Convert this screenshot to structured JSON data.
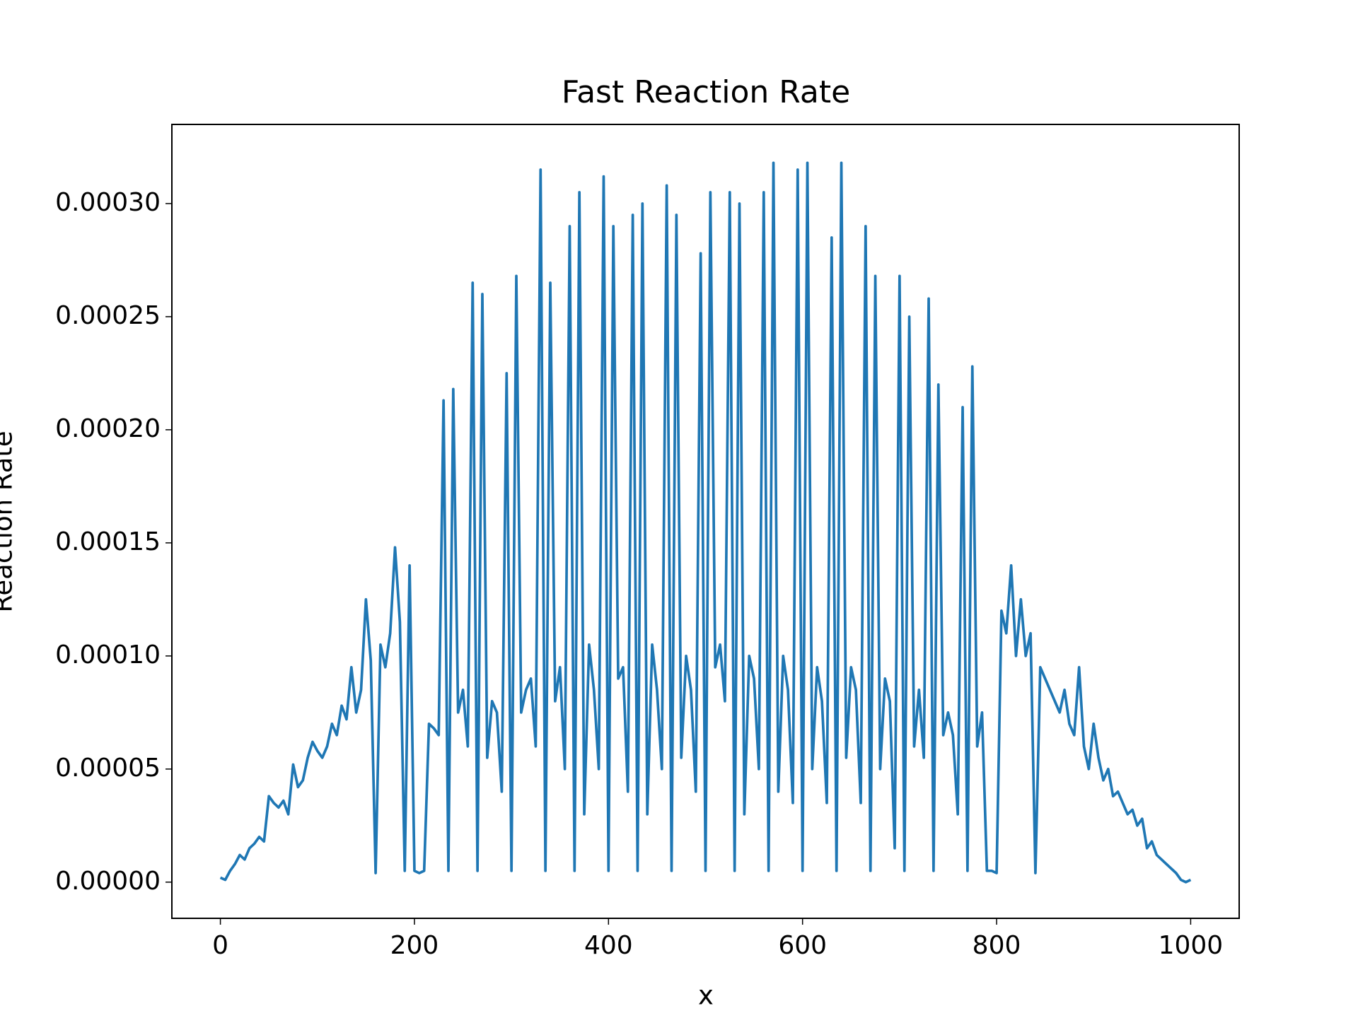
{
  "chart_data": {
    "type": "line",
    "title": "Fast Reaction Rate",
    "xlabel": "x",
    "ylabel": "Reaction Rate",
    "xlim": [
      -50,
      1050
    ],
    "ylim": [
      -1.6e-05,
      0.000335
    ],
    "xticks": [
      0,
      200,
      400,
      600,
      800,
      1000
    ],
    "yticks": [
      {
        "value": 0,
        "label": "0.00000"
      },
      {
        "value": 5e-05,
        "label": "0.00005"
      },
      {
        "value": 0.0001,
        "label": "0.00010"
      },
      {
        "value": 0.00015,
        "label": "0.00015"
      },
      {
        "value": 0.0002,
        "label": "0.00020"
      },
      {
        "value": 0.00025,
        "label": "0.00025"
      },
      {
        "value": 0.0003,
        "label": "0.00030"
      }
    ],
    "grid": false,
    "x": [
      0,
      5,
      10,
      15,
      20,
      25,
      30,
      35,
      40,
      45,
      50,
      55,
      60,
      65,
      70,
      75,
      80,
      85,
      90,
      95,
      100,
      105,
      110,
      115,
      120,
      125,
      130,
      135,
      140,
      145,
      150,
      155,
      160,
      165,
      170,
      175,
      180,
      185,
      190,
      195,
      200,
      205,
      210,
      215,
      220,
      225,
      230,
      235,
      240,
      245,
      250,
      255,
      260,
      265,
      270,
      275,
      280,
      285,
      290,
      295,
      300,
      305,
      310,
      315,
      320,
      325,
      330,
      335,
      340,
      345,
      350,
      355,
      360,
      365,
      370,
      375,
      380,
      385,
      390,
      395,
      400,
      405,
      410,
      415,
      420,
      425,
      430,
      435,
      440,
      445,
      450,
      455,
      460,
      465,
      470,
      475,
      480,
      485,
      490,
      495,
      500,
      505,
      510,
      515,
      520,
      525,
      530,
      535,
      540,
      545,
      550,
      555,
      560,
      565,
      570,
      575,
      580,
      585,
      590,
      595,
      600,
      605,
      610,
      615,
      620,
      625,
      630,
      635,
      640,
      645,
      650,
      655,
      660,
      665,
      670,
      675,
      680,
      685,
      690,
      695,
      700,
      705,
      710,
      715,
      720,
      725,
      730,
      735,
      740,
      745,
      750,
      755,
      760,
      765,
      770,
      775,
      780,
      785,
      790,
      795,
      800,
      805,
      810,
      815,
      820,
      825,
      830,
      835,
      840,
      845,
      850,
      855,
      860,
      865,
      870,
      875,
      880,
      885,
      890,
      895,
      900,
      905,
      910,
      915,
      920,
      925,
      930,
      935,
      940,
      945,
      950,
      955,
      960,
      965,
      970,
      975,
      980,
      985,
      990,
      995,
      1000
    ],
    "series": [
      {
        "color": "#1f77b4",
        "values": [
          2e-06,
          1e-06,
          5e-06,
          8e-06,
          1.2e-05,
          1e-05,
          1.5e-05,
          1.7e-05,
          2e-05,
          1.8e-05,
          3.8e-05,
          3.5e-05,
          3.3e-05,
          3.6e-05,
          3e-05,
          5.2e-05,
          4.2e-05,
          4.5e-05,
          5.5e-05,
          6.2e-05,
          5.8e-05,
          5.5e-05,
          6e-05,
          7e-05,
          6.5e-05,
          7.8e-05,
          7.2e-05,
          9.5e-05,
          7.5e-05,
          8.5e-05,
          0.000125,
          9.8e-05,
          4e-06,
          0.000105,
          9.5e-05,
          0.00011,
          0.000148,
          0.000115,
          5e-06,
          0.00014,
          5e-06,
          4e-06,
          5e-06,
          7e-05,
          6.8e-05,
          6.5e-05,
          0.000213,
          5e-06,
          0.000218,
          7.5e-05,
          8.5e-05,
          6e-05,
          0.000265,
          5e-06,
          0.00026,
          5.5e-05,
          8e-05,
          7.5e-05,
          4e-05,
          0.000225,
          5e-06,
          0.000268,
          7.5e-05,
          8.5e-05,
          9e-05,
          6e-05,
          0.000315,
          5e-06,
          0.000265,
          8e-05,
          9.5e-05,
          5e-05,
          0.00029,
          5e-06,
          0.000305,
          3e-05,
          0.000105,
          8.5e-05,
          5e-05,
          0.000312,
          5e-06,
          0.00029,
          9e-05,
          9.5e-05,
          4e-05,
          0.000295,
          5e-06,
          0.0003,
          3e-05,
          0.000105,
          8.5e-05,
          5e-05,
          0.000308,
          5e-06,
          0.000295,
          5.5e-05,
          0.0001,
          8.5e-05,
          4e-05,
          0.000278,
          5e-06,
          0.000305,
          9.5e-05,
          0.000105,
          8e-05,
          0.000305,
          5e-06,
          0.0003,
          3e-05,
          0.0001,
          9e-05,
          5e-05,
          0.000305,
          5e-06,
          0.000318,
          4e-05,
          0.0001,
          8.5e-05,
          3.5e-05,
          0.000315,
          5e-06,
          0.000318,
          5e-05,
          9.5e-05,
          8e-05,
          3.5e-05,
          0.000285,
          5e-06,
          0.000318,
          5.5e-05,
          9.5e-05,
          8.5e-05,
          3.5e-05,
          0.00029,
          5e-06,
          0.000268,
          5e-05,
          9e-05,
          8e-05,
          1.5e-05,
          0.000268,
          5e-06,
          0.00025,
          6e-05,
          8.5e-05,
          5.5e-05,
          0.000258,
          5e-06,
          0.00022,
          6.5e-05,
          7.5e-05,
          6.5e-05,
          3e-05,
          0.00021,
          5e-06,
          0.000228,
          6e-05,
          7.5e-05,
          5e-06,
          5e-06,
          4e-06,
          0.00012,
          0.00011,
          0.00014,
          0.0001,
          0.000125,
          0.0001,
          0.00011,
          4e-06,
          9.5e-05,
          9e-05,
          8.5e-05,
          8e-05,
          7.5e-05,
          8.5e-05,
          7e-05,
          6.5e-05,
          9.5e-05,
          6e-05,
          5e-05,
          7e-05,
          5.5e-05,
          4.5e-05,
          5e-05,
          3.8e-05,
          4e-05,
          3.5e-05,
          3e-05,
          3.2e-05,
          2.5e-05,
          2.8e-05,
          1.5e-05,
          1.8e-05,
          1.2e-05,
          1e-05,
          8e-06,
          6e-06,
          4e-06,
          1e-06,
          0,
          1e-06
        ]
      }
    ]
  }
}
